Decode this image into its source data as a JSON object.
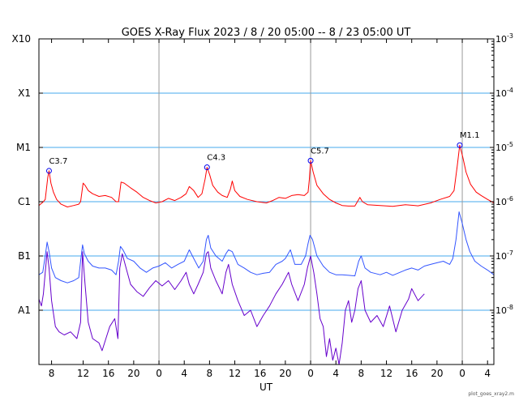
{
  "chart_data": {
    "type": "line",
    "title": "GOES X-Ray Flux   2023  /  8  /  20    05:00 --  8  /  23    05:00    UT",
    "xlabel": "UT",
    "ylabel": "",
    "x_unit": "hours since 2023-08-20 05:00 UT",
    "xlim": [
      0,
      72
    ],
    "ylim": [
      1e-09,
      0.001
    ],
    "y_scale": "log",
    "x_ticks": [
      {
        "t": 2,
        "label": "8"
      },
      {
        "t": 7,
        "label": "12"
      },
      {
        "t": 11,
        "label": "16"
      },
      {
        "t": 15,
        "label": "20"
      },
      {
        "t": 19,
        "label": "0"
      },
      {
        "t": 23,
        "label": "4"
      },
      {
        "t": 27,
        "label": "8"
      },
      {
        "t": 31,
        "label": "12"
      },
      {
        "t": 35,
        "label": "16"
      },
      {
        "t": 39,
        "label": "20"
      },
      {
        "t": 43,
        "label": "0"
      },
      {
        "t": 47,
        "label": "4"
      },
      {
        "t": 51,
        "label": "8"
      },
      {
        "t": 55,
        "label": "12"
      },
      {
        "t": 59,
        "label": "16"
      },
      {
        "t": 63,
        "label": "20"
      },
      {
        "t": 67,
        "label": "0"
      },
      {
        "t": 71,
        "label": "4"
      }
    ],
    "day_boundaries": [
      19,
      43,
      67
    ],
    "left_ticks": [
      {
        "label": "X10",
        "value": 0.001
      },
      {
        "label": "X1",
        "value": 0.0001
      },
      {
        "label": "M1",
        "value": 1e-05
      },
      {
        "label": "C1",
        "value": 1e-06
      },
      {
        "label": "B1",
        "value": 1e-07
      },
      {
        "label": "A1",
        "value": 1e-08
      }
    ],
    "right_ticks": [
      {
        "base": "10",
        "exp": "-3",
        "value": 0.001
      },
      {
        "base": "10",
        "exp": "-4",
        "value": 0.0001
      },
      {
        "base": "10",
        "exp": "-5",
        "value": 1e-05
      },
      {
        "base": "10",
        "exp": "-6",
        "value": 1e-06
      },
      {
        "base": "10",
        "exp": "-7",
        "value": 1e-07
      },
      {
        "base": "10",
        "exp": "-8",
        "value": 1e-08
      }
    ],
    "gridlines": [
      0.0001,
      1e-05,
      1e-06,
      1e-07,
      1e-08
    ],
    "series": [
      {
        "color": "#ff0000",
        "points": [
          [
            0,
            8.5e-07
          ],
          [
            0.7,
            1e-06
          ],
          [
            1.0,
            1.1e-06
          ],
          [
            1.4,
            2.8e-06
          ],
          [
            1.6,
            3.7e-06
          ],
          [
            1.9,
            2.2e-06
          ],
          [
            2.3,
            1.5e-06
          ],
          [
            2.8,
            1.1e-06
          ],
          [
            3.5,
            9e-07
          ],
          [
            4.5,
            8e-07
          ],
          [
            5.5,
            8.5e-07
          ],
          [
            6.3,
            9e-07
          ],
          [
            6.6,
            1e-06
          ],
          [
            7.0,
            2.2e-06
          ],
          [
            7.3,
            2e-06
          ],
          [
            7.8,
            1.6e-06
          ],
          [
            8.5,
            1.4e-06
          ],
          [
            9.5,
            1.25e-06
          ],
          [
            10.5,
            1.3e-06
          ],
          [
            11.5,
            1.2e-06
          ],
          [
            12.2,
            1e-06
          ],
          [
            12.6,
            1e-06
          ],
          [
            13.0,
            2.3e-06
          ],
          [
            13.5,
            2.2e-06
          ],
          [
            14.5,
            1.8e-06
          ],
          [
            15.5,
            1.5e-06
          ],
          [
            16.5,
            1.2e-06
          ],
          [
            17.5,
            1.05e-06
          ],
          [
            18.5,
            9.5e-07
          ],
          [
            19.5,
            1e-06
          ],
          [
            20.5,
            1.15e-06
          ],
          [
            21.5,
            1.05e-06
          ],
          [
            22.5,
            1.2e-06
          ],
          [
            23.3,
            1.4e-06
          ],
          [
            23.8,
            1.9e-06
          ],
          [
            24.5,
            1.6e-06
          ],
          [
            25.2,
            1.2e-06
          ],
          [
            25.8,
            1.4e-06
          ],
          [
            26.3,
            2.6e-06
          ],
          [
            26.6,
            4.3e-06
          ],
          [
            27.0,
            3.2e-06
          ],
          [
            27.5,
            2e-06
          ],
          [
            28.3,
            1.5e-06
          ],
          [
            29.0,
            1.3e-06
          ],
          [
            29.8,
            1.2e-06
          ],
          [
            30.3,
            1.7e-06
          ],
          [
            30.6,
            2.4e-06
          ],
          [
            31.0,
            1.6e-06
          ],
          [
            31.8,
            1.25e-06
          ],
          [
            33,
            1.1e-06
          ],
          [
            34.5,
            1e-06
          ],
          [
            36,
            9.5e-07
          ],
          [
            37,
            1.05e-06
          ],
          [
            38,
            1.2e-06
          ],
          [
            39,
            1.15e-06
          ],
          [
            40,
            1.3e-06
          ],
          [
            41,
            1.35e-06
          ],
          [
            42,
            1.3e-06
          ],
          [
            42.6,
            1.5e-06
          ],
          [
            42.8,
            2.6e-06
          ],
          [
            43.0,
            5.7e-06
          ],
          [
            43.4,
            3.5e-06
          ],
          [
            44.0,
            2e-06
          ],
          [
            45,
            1.4e-06
          ],
          [
            46,
            1.1e-06
          ],
          [
            47,
            9.5e-07
          ],
          [
            48,
            8.5e-07
          ],
          [
            49,
            8.3e-07
          ],
          [
            50,
            8.3e-07
          ],
          [
            50.8,
            1.2e-06
          ],
          [
            51.2,
            1e-06
          ],
          [
            52,
            8.8e-07
          ],
          [
            54,
            8.5e-07
          ],
          [
            56,
            8.2e-07
          ],
          [
            58,
            8.8e-07
          ],
          [
            60,
            8.4e-07
          ],
          [
            62,
            9.5e-07
          ],
          [
            63.5,
            1.1e-06
          ],
          [
            65,
            1.25e-06
          ],
          [
            65.7,
            1.6e-06
          ],
          [
            66.2,
            4.5e-06
          ],
          [
            66.6,
            1.1e-05
          ],
          [
            67.1,
            6.5e-06
          ],
          [
            67.6,
            3.5e-06
          ],
          [
            68.3,
            2.1e-06
          ],
          [
            69.2,
            1.5e-06
          ],
          [
            70,
            1.3e-06
          ],
          [
            71,
            1.1e-06
          ],
          [
            72,
            9.5e-07
          ]
        ]
      },
      {
        "color": "#3355ff",
        "points": [
          [
            0,
            4.5e-08
          ],
          [
            0.6,
            5e-08
          ],
          [
            1.0,
            1e-07
          ],
          [
            1.3,
            1.8e-07
          ],
          [
            1.6,
            1.2e-07
          ],
          [
            2.0,
            6e-08
          ],
          [
            2.6,
            4e-08
          ],
          [
            3.5,
            3.5e-08
          ],
          [
            4.5,
            3.2e-08
          ],
          [
            5.5,
            3.5e-08
          ],
          [
            6.3,
            4e-08
          ],
          [
            6.6,
            8e-08
          ],
          [
            6.9,
            1.6e-07
          ],
          [
            7.2,
            1.1e-07
          ],
          [
            7.8,
            8e-08
          ],
          [
            8.5,
            6.5e-08
          ],
          [
            9.5,
            6e-08
          ],
          [
            10.5,
            6e-08
          ],
          [
            11.5,
            5.5e-08
          ],
          [
            12.2,
            4.5e-08
          ],
          [
            12.6,
            8e-08
          ],
          [
            12.9,
            1.5e-07
          ],
          [
            13.3,
            1.3e-07
          ],
          [
            14,
            9e-08
          ],
          [
            15,
            8e-08
          ],
          [
            16,
            6e-08
          ],
          [
            17,
            5e-08
          ],
          [
            18,
            6e-08
          ],
          [
            19,
            6.5e-08
          ],
          [
            20,
            7.5e-08
          ],
          [
            21,
            6e-08
          ],
          [
            22,
            7e-08
          ],
          [
            23,
            8e-08
          ],
          [
            23.8,
            1.3e-07
          ],
          [
            24.5,
            9e-08
          ],
          [
            25.3,
            6e-08
          ],
          [
            26,
            8e-08
          ],
          [
            26.5,
            2e-07
          ],
          [
            26.8,
            2.4e-07
          ],
          [
            27.2,
            1.4e-07
          ],
          [
            28,
            1e-07
          ],
          [
            29,
            8e-08
          ],
          [
            29.6,
            1.1e-07
          ],
          [
            30,
            1.3e-07
          ],
          [
            30.6,
            1.2e-07
          ],
          [
            31.5,
            7e-08
          ],
          [
            32.5,
            6e-08
          ],
          [
            33.5,
            5e-08
          ],
          [
            34.5,
            4.5e-08
          ],
          [
            35.5,
            4.8e-08
          ],
          [
            36.5,
            5e-08
          ],
          [
            37.5,
            7e-08
          ],
          [
            38.5,
            8e-08
          ],
          [
            39,
            9e-08
          ],
          [
            39.8,
            1.3e-07
          ],
          [
            40.5,
            7e-08
          ],
          [
            41.5,
            7e-08
          ],
          [
            42.2,
            1e-07
          ],
          [
            42.6,
            1.7e-07
          ],
          [
            42.9,
            2.4e-07
          ],
          [
            43.3,
            2e-07
          ],
          [
            44,
            1e-07
          ],
          [
            45,
            6.5e-08
          ],
          [
            46,
            5e-08
          ],
          [
            47,
            4.5e-08
          ],
          [
            48,
            4.5e-08
          ],
          [
            49,
            4.4e-08
          ],
          [
            50,
            4.3e-08
          ],
          [
            50.6,
            8e-08
          ],
          [
            51.0,
            1e-07
          ],
          [
            51.6,
            6e-08
          ],
          [
            52.5,
            5e-08
          ],
          [
            54,
            4.5e-08
          ],
          [
            55,
            5e-08
          ],
          [
            56,
            4.4e-08
          ],
          [
            58,
            5.5e-08
          ],
          [
            59,
            6e-08
          ],
          [
            60,
            5.5e-08
          ],
          [
            61,
            6.5e-08
          ],
          [
            62,
            7e-08
          ],
          [
            63,
            7.5e-08
          ],
          [
            64,
            8e-08
          ],
          [
            65,
            7e-08
          ],
          [
            65.5,
            9e-08
          ],
          [
            66.0,
            2e-07
          ],
          [
            66.5,
            6.5e-07
          ],
          [
            67.0,
            4e-07
          ],
          [
            67.6,
            2e-07
          ],
          [
            68.2,
            1.2e-07
          ],
          [
            69,
            8e-08
          ],
          [
            70,
            6.5e-08
          ],
          [
            71,
            5.5e-08
          ],
          [
            72,
            4.5e-08
          ]
        ]
      },
      {
        "color": "#6600cc",
        "points": [
          [
            0,
            1.6e-08
          ],
          [
            0.4,
            1.2e-08
          ],
          [
            0.7,
            2e-08
          ],
          [
            1.0,
            5e-08
          ],
          [
            1.3,
            1.2e-07
          ],
          [
            1.6,
            6e-08
          ],
          [
            2.0,
            1.5e-08
          ],
          [
            2.6,
            5e-09
          ],
          [
            3.2,
            4e-09
          ],
          [
            4,
            3.5e-09
          ],
          [
            5,
            4e-09
          ],
          [
            6,
            3e-09
          ],
          [
            6.6,
            6e-09
          ],
          [
            6.9,
            1.2e-07
          ],
          [
            7.3,
            3e-08
          ],
          [
            7.8,
            6e-09
          ],
          [
            8.5,
            3e-09
          ],
          [
            9.5,
            2.5e-09
          ],
          [
            10,
            1.8e-09
          ],
          [
            10.6,
            3e-09
          ],
          [
            11.2,
            5e-09
          ],
          [
            12,
            7e-09
          ],
          [
            12.5,
            3e-09
          ],
          [
            12.8,
            6e-08
          ],
          [
            13.2,
            1.1e-07
          ],
          [
            13.8,
            6e-08
          ],
          [
            14.5,
            3e-08
          ],
          [
            15.5,
            2.2e-08
          ],
          [
            16.5,
            1.8e-08
          ],
          [
            17.5,
            2.6e-08
          ],
          [
            18.5,
            3.5e-08
          ],
          [
            19.5,
            2.8e-08
          ],
          [
            20.5,
            3.5e-08
          ],
          [
            21.5,
            2.4e-08
          ],
          [
            22.5,
            3.5e-08
          ],
          [
            23.3,
            5e-08
          ],
          [
            23.8,
            3e-08
          ],
          [
            24.5,
            2e-08
          ],
          [
            25.2,
            3e-08
          ],
          [
            26,
            5e-08
          ],
          [
            26.5,
            1.1e-07
          ],
          [
            26.8,
            1.2e-07
          ],
          [
            27.2,
            6e-08
          ],
          [
            28,
            3.5e-08
          ],
          [
            29,
            2e-08
          ],
          [
            29.6,
            5e-08
          ],
          [
            30,
            7e-08
          ],
          [
            30.6,
            3e-08
          ],
          [
            31.5,
            1.5e-08
          ],
          [
            32.5,
            8e-09
          ],
          [
            33.5,
            1e-08
          ],
          [
            34.5,
            5e-09
          ],
          [
            35.5,
            8e-09
          ],
          [
            36.5,
            1.2e-08
          ],
          [
            37.5,
            2e-08
          ],
          [
            38.5,
            3e-08
          ],
          [
            39.5,
            5e-08
          ],
          [
            40,
            3e-08
          ],
          [
            41,
            1.5e-08
          ],
          [
            42,
            3e-08
          ],
          [
            42.5,
            6e-08
          ],
          [
            43.0,
            1e-07
          ],
          [
            43.5,
            5e-08
          ],
          [
            44,
            2e-08
          ],
          [
            44.5,
            7e-09
          ],
          [
            45,
            5e-09
          ],
          [
            45.5,
            1.4e-09
          ],
          [
            46,
            3e-09
          ],
          [
            46.5,
            1.2e-09
          ],
          [
            47,
            2e-09
          ],
          [
            47.5,
            1e-09
          ],
          [
            48,
            2.5e-09
          ],
          [
            48.5,
            1e-08
          ],
          [
            49,
            1.5e-08
          ],
          [
            49.5,
            6e-09
          ],
          [
            50,
            1e-08
          ],
          [
            50.5,
            2.5e-08
          ],
          [
            51,
            3.5e-08
          ],
          [
            51.6,
            1e-08
          ],
          [
            52.5,
            6e-09
          ],
          [
            53.5,
            8e-09
          ],
          [
            54.5,
            5e-09
          ],
          [
            55.5,
            1.2e-08
          ],
          [
            56.5,
            4e-09
          ],
          [
            57.5,
            1e-08
          ],
          [
            58.5,
            1.6e-08
          ],
          [
            59,
            2.5e-08
          ],
          [
            60,
            1.5e-08
          ],
          [
            61,
            2e-08
          ]
        ]
      }
    ],
    "flares": [
      {
        "label": "C3.7",
        "t": 1.6,
        "value": 3.7e-06
      },
      {
        "label": "C4.3",
        "t": 26.6,
        "value": 4.3e-06
      },
      {
        "label": "C5.7",
        "t": 43.0,
        "value": 5.7e-06
      },
      {
        "label": "M1.1",
        "t": 66.6,
        "value": 1.1e-05
      }
    ],
    "colors": {
      "gridline": "#44aaee",
      "day_line": "#999999",
      "flare_marker": "#0000ee"
    },
    "credit": "plot_goes_xray2.m"
  }
}
